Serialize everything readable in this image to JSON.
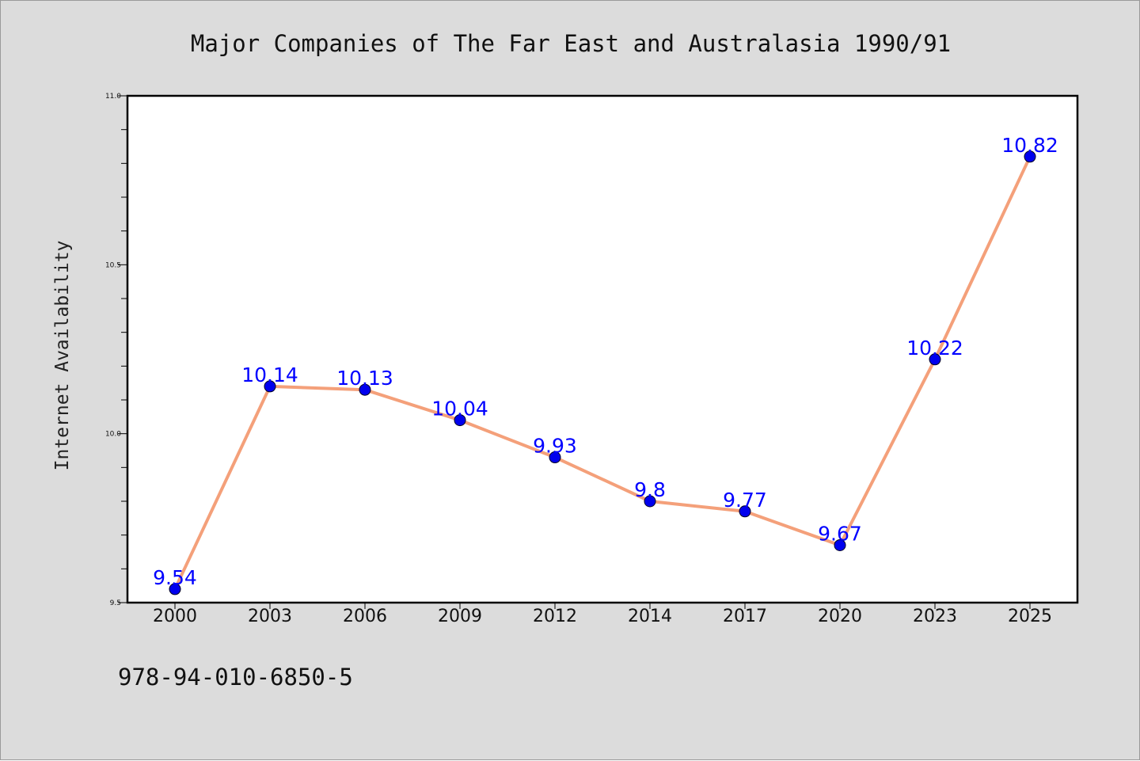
{
  "chart_data": {
    "type": "line",
    "title": "Major Companies of The Far East and Australasia 1990/91",
    "xlabel": "",
    "ylabel": "Internet Availability",
    "categories": [
      "2000",
      "2003",
      "2006",
      "2009",
      "2012",
      "2014",
      "2017",
      "2020",
      "2023",
      "2025"
    ],
    "series": [
      {
        "values": [
          9.54,
          10.14,
          10.13,
          10.04,
          9.93,
          9.8,
          9.77,
          9.67,
          10.22,
          10.82
        ],
        "data_labels": [
          "9.54",
          "10.14",
          "10.13",
          "10.04",
          "9.93",
          "9.8",
          "9.77",
          "9.67",
          "10.22",
          "10.82"
        ]
      }
    ],
    "ylim": [
      9.5,
      11.0
    ],
    "yticks": [
      9.5,
      10.0,
      10.5,
      11.0
    ],
    "ytick_labels": [
      "9.5",
      "10.0",
      "10.5",
      "11.0"
    ],
    "grid": false,
    "legend": "none"
  },
  "footer_text": "978-94-010-6850-5",
  "colors": {
    "background": "#dcdcdc",
    "plot_area": "#ffffff",
    "line": "#f4a07a",
    "marker": "#0000ee",
    "data_label": "#0000ff"
  }
}
